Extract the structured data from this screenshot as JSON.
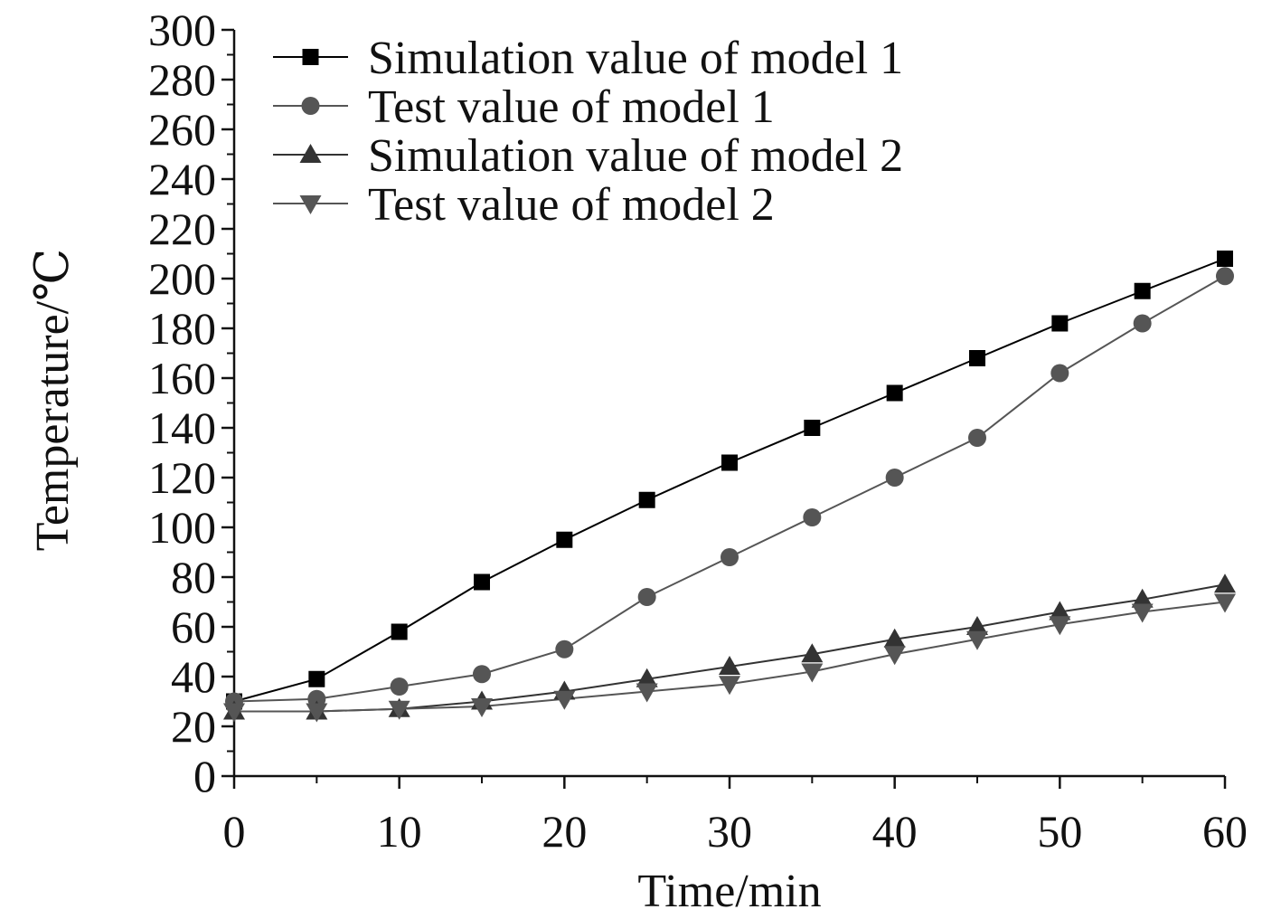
{
  "chart_data": {
    "type": "line",
    "title": "",
    "xlabel": "Time/min",
    "ylabel": "Temperature/℃",
    "xlim": [
      0,
      60
    ],
    "ylim": [
      0,
      300
    ],
    "xticks": [
      0,
      10,
      20,
      30,
      40,
      50,
      60
    ],
    "yticks": [
      0,
      20,
      40,
      60,
      80,
      100,
      120,
      140,
      160,
      180,
      200,
      220,
      240,
      260,
      280,
      300
    ],
    "x": [
      0,
      5,
      10,
      15,
      20,
      25,
      30,
      35,
      40,
      45,
      50,
      55,
      60
    ],
    "grid": false,
    "legend_position": "top-left",
    "series": [
      {
        "name": "Simulation value of model 1",
        "marker": "square",
        "color": "#000000",
        "values": [
          30,
          39,
          58,
          78,
          95,
          111,
          126,
          140,
          154,
          168,
          182,
          195,
          208
        ]
      },
      {
        "name": "Test value of model 1",
        "marker": "circle",
        "color": "#555555",
        "values": [
          30,
          31,
          36,
          41,
          51,
          72,
          88,
          104,
          120,
          136,
          162,
          182,
          201
        ]
      },
      {
        "name": "Simulation value of model 2",
        "marker": "triangle-up",
        "color": "#333333",
        "values": [
          26,
          26,
          27,
          30,
          34,
          39,
          44,
          49,
          55,
          60,
          66,
          71,
          77
        ]
      },
      {
        "name": "Test value of model 2",
        "marker": "triangle-down",
        "color": "#555555",
        "values": [
          26,
          26,
          27,
          28,
          31,
          34,
          37,
          42,
          49,
          55,
          61,
          66,
          70
        ]
      }
    ]
  }
}
